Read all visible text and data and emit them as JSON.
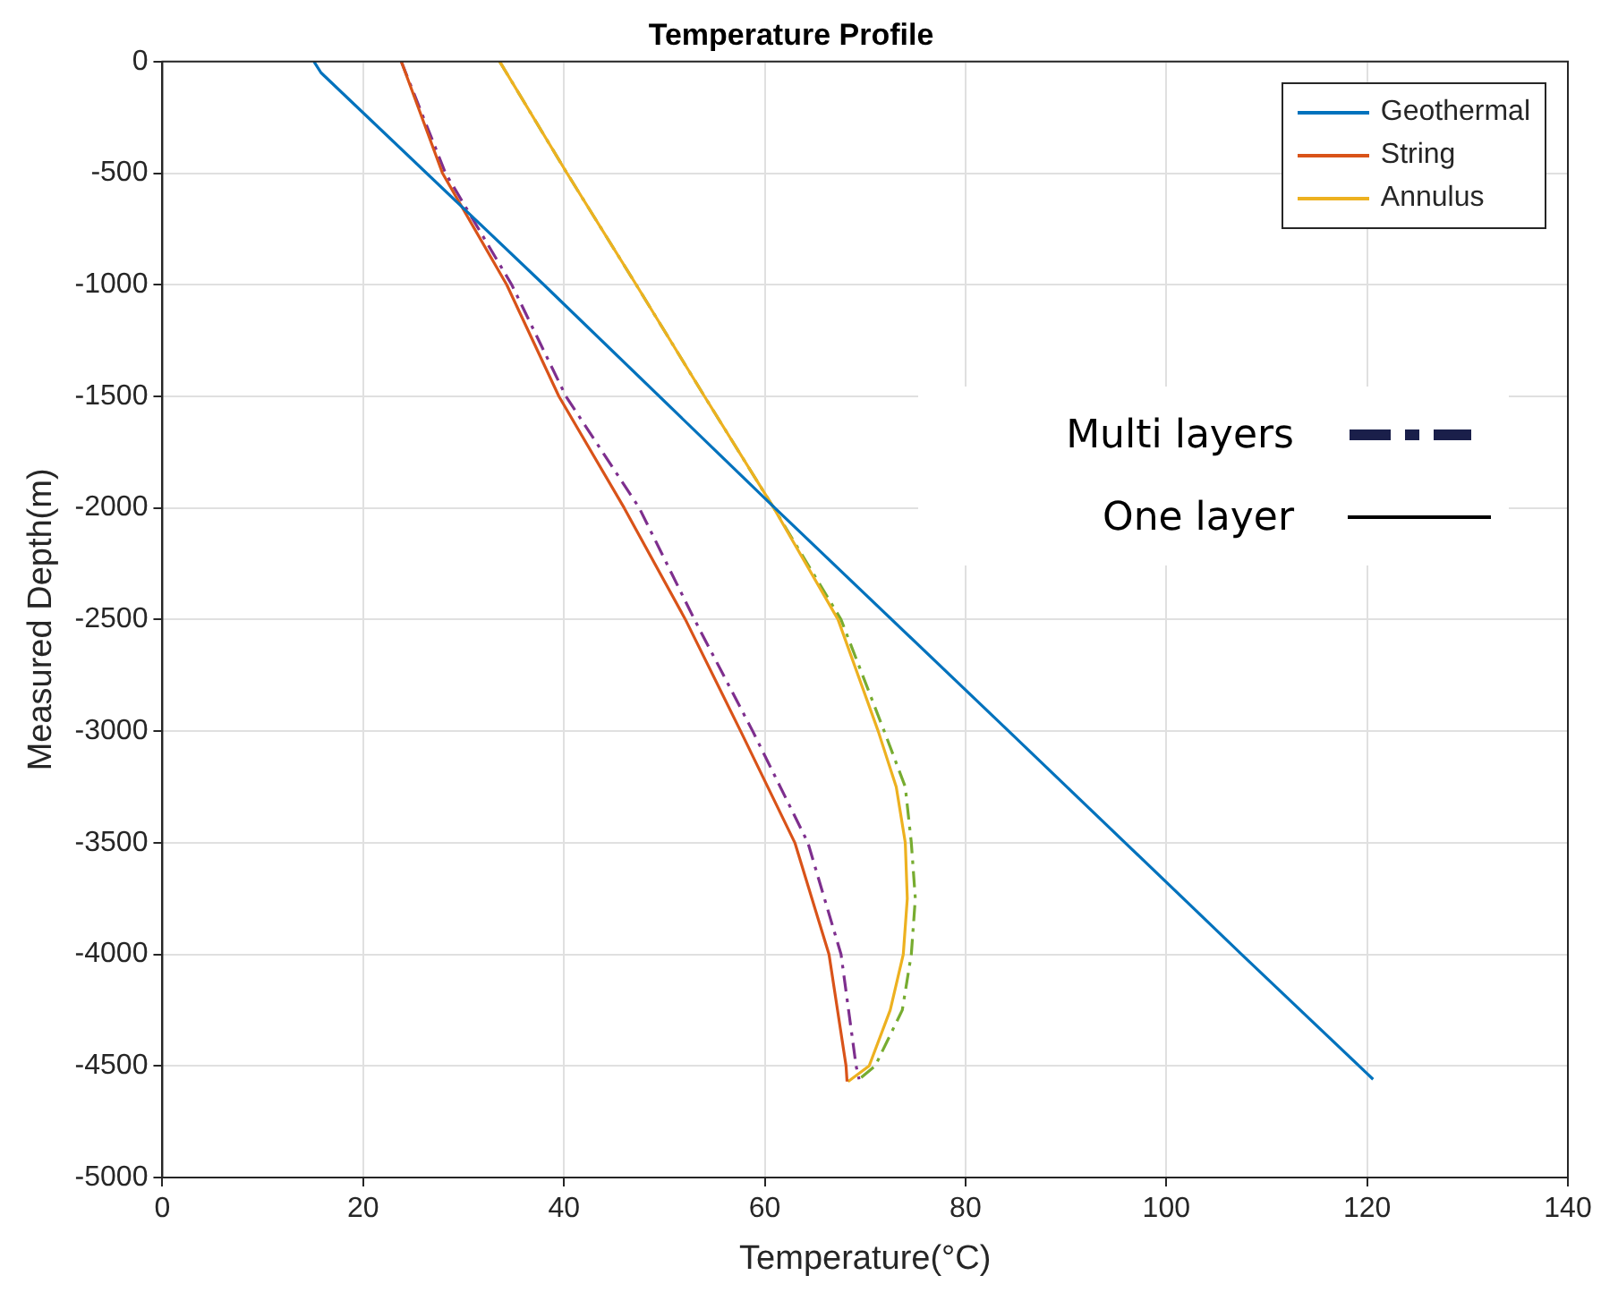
{
  "chart_data": {
    "type": "line",
    "title": "Temperature Profile",
    "xlabel": "Temperature(°C)",
    "ylabel": "Measured Depth(m)",
    "xlim": [
      0,
      140
    ],
    "xticks": [
      0,
      20,
      40,
      60,
      80,
      100,
      120,
      140
    ],
    "ylim": [
      -5000,
      0
    ],
    "yticks": [
      -5000,
      -4500,
      -4000,
      -3500,
      -3000,
      -2500,
      -2000,
      -1500,
      -1000,
      -500,
      0
    ],
    "grid": true,
    "legend": "top right",
    "marker": "none",
    "annotations": [
      "Multi layers",
      "One layer"
    ],
    "series": [
      {
        "name": "Geothermal",
        "color": "#0072bd",
        "line_style": "solid",
        "x": [
          15.1,
          15.8,
          38,
          61,
          84.3,
          107.5,
          120.6
        ],
        "values": [
          0,
          -50,
          -1000,
          -2000,
          -3000,
          -4000,
          -4560
        ]
      },
      {
        "name": "String",
        "color": "#d95319",
        "line_style": "solid",
        "x": [
          23.8,
          27.9,
          34.3,
          39.5,
          46.0,
          52.1,
          57.6,
          63.0,
          66.4,
          68.1,
          68.2
        ],
        "values": [
          0,
          -500,
          -1000,
          -1500,
          -2000,
          -2500,
          -3000,
          -3500,
          -4000,
          -4500,
          -4570
        ]
      },
      {
        "name": "Annulus",
        "color": "#edb120",
        "line_style": "solid",
        "x": [
          33.6,
          40.3,
          47.2,
          54.0,
          60.9,
          67.3,
          71.3,
          73.1,
          74.0,
          74.2,
          73.8,
          72.5,
          70.4,
          68.3
        ],
        "values": [
          0,
          -500,
          -1000,
          -1500,
          -2000,
          -2500,
          -3000,
          -3250,
          -3500,
          -3750,
          -4000,
          -4250,
          -4500,
          -4570
        ]
      },
      {
        "color": "#7e2f8e",
        "line_style": "dashed",
        "x": [
          23.8,
          28.2,
          34.8,
          40.2,
          47.5,
          53.0,
          58.8,
          64.3,
          67.6,
          69.1,
          69.4
        ],
        "values": [
          0,
          -500,
          -1000,
          -1500,
          -2000,
          -2500,
          -3000,
          -3500,
          -4000,
          -4500,
          -4560
        ]
      },
      {
        "color": "#77ac30",
        "line_style": "dashed",
        "x": [
          33.6,
          40.3,
          47.2,
          54.0,
          60.9,
          67.6,
          71.9,
          74.0,
          74.6,
          75.0,
          74.6,
          73.7,
          71.0,
          69.4
        ],
        "values": [
          0,
          -500,
          -1000,
          -1500,
          -2000,
          -2500,
          -3000,
          -3250,
          -3500,
          -3750,
          -4000,
          -4250,
          -4500,
          -4560
        ]
      }
    ]
  }
}
